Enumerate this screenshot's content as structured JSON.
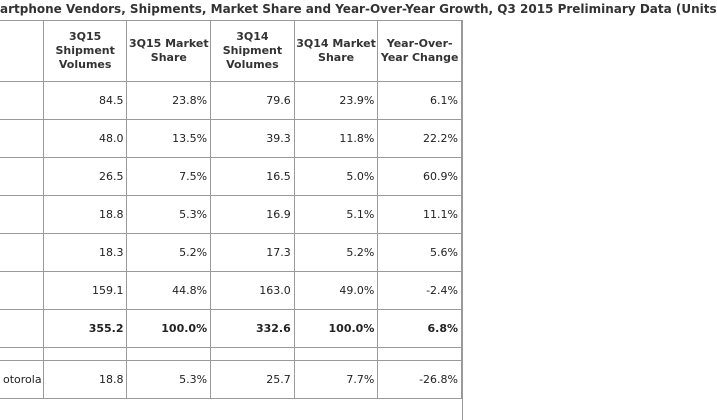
{
  "title": "artphone Vendors, Shipments, Market Share and Year-Over-Year Growth, Q3 2015 Preliminary Data (Units",
  "columns": [
    "",
    "3Q15 Shipment Volumes",
    "3Q15 Market Share",
    "3Q14 Shipment Volumes",
    "3Q14 Market Share",
    "Year-Over-Year Change"
  ],
  "rows": [
    {
      "vendor": "",
      "v15": "84.5",
      "s15": "23.8%",
      "v14": "79.6",
      "s14": "23.9%",
      "yoy": "6.1%"
    },
    {
      "vendor": "",
      "v15": "48.0",
      "s15": "13.5%",
      "v14": "39.3",
      "s14": "11.8%",
      "yoy": "22.2%"
    },
    {
      "vendor": "",
      "v15": "26.5",
      "s15": "7.5%",
      "v14": "16.5",
      "s14": "5.0%",
      "yoy": "60.9%"
    },
    {
      "vendor": "",
      "v15": "18.8",
      "s15": "5.3%",
      "v14": "16.9",
      "s14": "5.1%",
      "yoy": "11.1%"
    },
    {
      "vendor": "",
      "v15": "18.3",
      "s15": "5.2%",
      "v14": "17.3",
      "s14": "5.2%",
      "yoy": "5.6%"
    },
    {
      "vendor": "",
      "v15": "159.1",
      "s15": "44.8%",
      "v14": "163.0",
      "s14": "49.0%",
      "yoy": "-2.4%"
    }
  ],
  "total": {
    "vendor": "",
    "v15": "355.2",
    "s15": "100.0%",
    "v14": "332.6",
    "s14": "100.0%",
    "yoy": "6.8%"
  },
  "extra_row": {
    "vendor": "otorola",
    "v15": "18.8",
    "s15": "5.3%",
    "v14": "25.7",
    "s14": "7.7%",
    "yoy": "-26.8%"
  }
}
